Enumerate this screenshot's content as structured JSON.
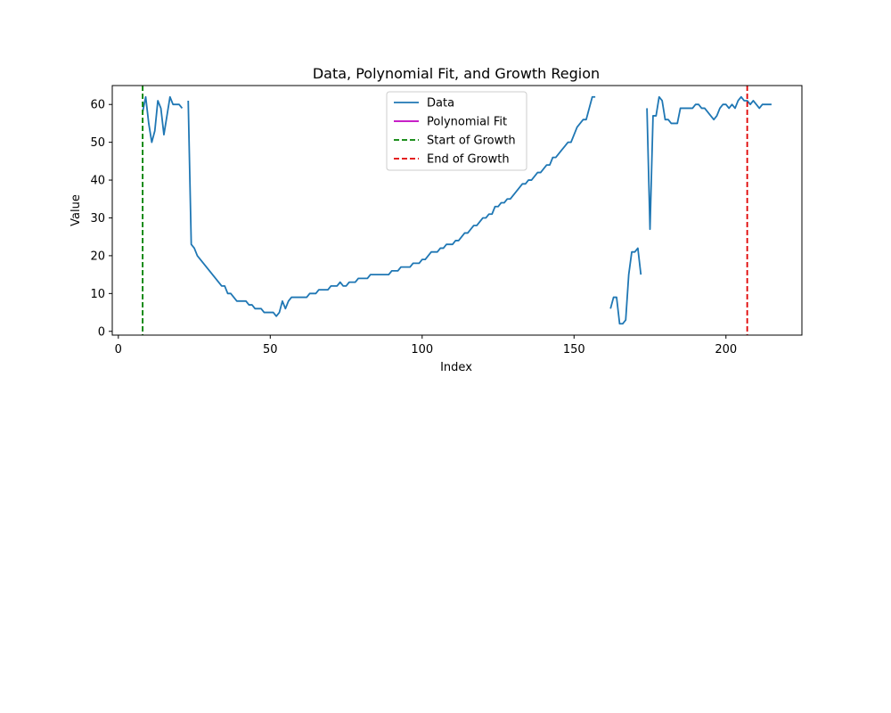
{
  "chart_data": {
    "type": "line",
    "title": "Data, Polynomial Fit, and Growth Region",
    "xlabel": "Index",
    "ylabel": "Value",
    "xlim": [
      -2,
      225
    ],
    "ylim": [
      -1,
      65
    ],
    "xticks": [
      0,
      50,
      100,
      150,
      200
    ],
    "yticks": [
      0,
      10,
      20,
      30,
      40,
      50,
      60
    ],
    "grid": false,
    "legend_position": "top-center",
    "colors": {
      "data": "#1f77b4",
      "fit": "#bf00bf",
      "start": "#008000",
      "end": "#e00000"
    },
    "legend": [
      {
        "label": "Data",
        "style": "solid",
        "color_key": "data"
      },
      {
        "label": "Polynomial Fit",
        "style": "solid",
        "color_key": "fit"
      },
      {
        "label": "Start of Growth",
        "style": "dashed",
        "color_key": "start"
      },
      {
        "label": "End of Growth",
        "style": "dashed",
        "color_key": "end"
      }
    ],
    "vlines": [
      {
        "name": "Start of Growth",
        "x": 8,
        "color_key": "start"
      },
      {
        "name": "End of Growth",
        "x": 207,
        "color_key": "end"
      }
    ],
    "series": [
      {
        "name": "Data",
        "segments": [
          [
            [
              8,
              58
            ],
            [
              9,
              62
            ],
            [
              10,
              55
            ],
            [
              11,
              50
            ],
            [
              12,
              53
            ],
            [
              13,
              61
            ],
            [
              14,
              59
            ],
            [
              15,
              52
            ],
            [
              16,
              57
            ],
            [
              17,
              62
            ],
            [
              18,
              60
            ],
            [
              19,
              60
            ],
            [
              20,
              60
            ],
            [
              21,
              59
            ]
          ],
          [
            [
              23,
              61
            ],
            [
              24,
              23
            ],
            [
              25,
              22
            ],
            [
              26,
              20
            ],
            [
              34,
              12
            ],
            [
              35,
              12
            ],
            [
              36,
              10
            ],
            [
              37,
              10
            ],
            [
              38,
              9
            ],
            [
              39,
              8
            ],
            [
              40,
              8
            ],
            [
              41,
              8
            ],
            [
              42,
              8
            ],
            [
              43,
              7
            ],
            [
              44,
              7
            ],
            [
              45,
              6
            ],
            [
              46,
              6
            ],
            [
              47,
              6
            ],
            [
              48,
              5
            ],
            [
              49,
              5
            ],
            [
              50,
              5
            ],
            [
              51,
              5
            ],
            [
              52,
              4
            ],
            [
              53,
              5
            ],
            [
              54,
              8
            ],
            [
              55,
              6
            ],
            [
              56,
              8
            ],
            [
              57,
              9
            ],
            [
              58,
              9
            ],
            [
              59,
              9
            ],
            [
              60,
              9
            ],
            [
              61,
              9
            ],
            [
              62,
              9
            ],
            [
              63,
              10
            ],
            [
              64,
              10
            ],
            [
              65,
              10
            ],
            [
              66,
              11
            ],
            [
              67,
              11
            ],
            [
              68,
              11
            ],
            [
              69,
              11
            ],
            [
              70,
              12
            ],
            [
              71,
              12
            ],
            [
              72,
              12
            ],
            [
              73,
              13
            ],
            [
              74,
              12
            ],
            [
              75,
              12
            ],
            [
              76,
              13
            ],
            [
              77,
              13
            ],
            [
              78,
              13
            ],
            [
              79,
              14
            ],
            [
              80,
              14
            ],
            [
              81,
              14
            ],
            [
              82,
              14
            ],
            [
              83,
              15
            ],
            [
              84,
              15
            ],
            [
              85,
              15
            ],
            [
              86,
              15
            ],
            [
              87,
              15
            ],
            [
              88,
              15
            ],
            [
              89,
              15
            ],
            [
              90,
              16
            ],
            [
              91,
              16
            ],
            [
              92,
              16
            ],
            [
              93,
              17
            ],
            [
              94,
              17
            ],
            [
              95,
              17
            ],
            [
              96,
              17
            ],
            [
              97,
              18
            ],
            [
              98,
              18
            ],
            [
              99,
              18
            ],
            [
              100,
              19
            ],
            [
              101,
              19
            ],
            [
              102,
              20
            ],
            [
              103,
              21
            ],
            [
              104,
              21
            ],
            [
              105,
              21
            ],
            [
              106,
              22
            ],
            [
              107,
              22
            ],
            [
              108,
              23
            ],
            [
              109,
              23
            ],
            [
              110,
              23
            ],
            [
              111,
              24
            ],
            [
              112,
              24
            ],
            [
              113,
              25
            ],
            [
              114,
              26
            ],
            [
              115,
              26
            ],
            [
              116,
              27
            ],
            [
              117,
              28
            ],
            [
              118,
              28
            ],
            [
              119,
              29
            ],
            [
              120,
              30
            ],
            [
              121,
              30
            ],
            [
              122,
              31
            ],
            [
              123,
              31
            ],
            [
              124,
              33
            ],
            [
              125,
              33
            ],
            [
              126,
              34
            ],
            [
              127,
              34
            ],
            [
              128,
              35
            ],
            [
              129,
              35
            ],
            [
              130,
              36
            ],
            [
              131,
              37
            ],
            [
              132,
              38
            ],
            [
              133,
              39
            ],
            [
              134,
              39
            ],
            [
              135,
              40
            ],
            [
              136,
              40
            ],
            [
              137,
              41
            ],
            [
              138,
              42
            ],
            [
              139,
              42
            ],
            [
              140,
              43
            ],
            [
              141,
              44
            ],
            [
              142,
              44
            ],
            [
              143,
              46
            ],
            [
              144,
              46
            ],
            [
              145,
              47
            ],
            [
              146,
              48
            ],
            [
              147,
              49
            ],
            [
              148,
              50
            ],
            [
              149,
              50
            ],
            [
              150,
              52
            ],
            [
              151,
              54
            ],
            [
              152,
              55
            ],
            [
              153,
              56
            ],
            [
              154,
              56
            ],
            [
              155,
              59
            ],
            [
              156,
              62
            ],
            [
              157,
              62
            ]
          ],
          [
            [
              162,
              6
            ],
            [
              163,
              9
            ],
            [
              164,
              9
            ],
            [
              165,
              2
            ],
            [
              166,
              2
            ],
            [
              167,
              3
            ],
            [
              168,
              15
            ],
            [
              169,
              21
            ],
            [
              170,
              21
            ],
            [
              171,
              22
            ],
            [
              172,
              15
            ]
          ],
          [
            [
              174,
              59
            ],
            [
              175,
              27
            ],
            [
              176,
              57
            ],
            [
              177,
              57
            ],
            [
              178,
              62
            ],
            [
              179,
              61
            ],
            [
              180,
              56
            ],
            [
              181,
              56
            ],
            [
              182,
              55
            ],
            [
              183,
              55
            ],
            [
              184,
              55
            ],
            [
              185,
              59
            ],
            [
              186,
              59
            ],
            [
              187,
              59
            ],
            [
              188,
              59
            ],
            [
              189,
              59
            ],
            [
              190,
              60
            ],
            [
              191,
              60
            ],
            [
              192,
              59
            ],
            [
              193,
              59
            ],
            [
              194,
              58
            ],
            [
              195,
              57
            ],
            [
              196,
              56
            ],
            [
              197,
              57
            ],
            [
              198,
              59
            ],
            [
              199,
              60
            ],
            [
              200,
              60
            ],
            [
              201,
              59
            ],
            [
              202,
              60
            ],
            [
              203,
              59
            ],
            [
              204,
              61
            ],
            [
              205,
              62
            ],
            [
              206,
              61
            ],
            [
              207,
              61
            ],
            [
              208,
              60
            ],
            [
              209,
              61
            ],
            [
              210,
              60
            ],
            [
              211,
              59
            ],
            [
              212,
              60
            ],
            [
              213,
              60
            ],
            [
              214,
              60
            ],
            [
              215,
              60
            ]
          ]
        ]
      }
    ]
  }
}
